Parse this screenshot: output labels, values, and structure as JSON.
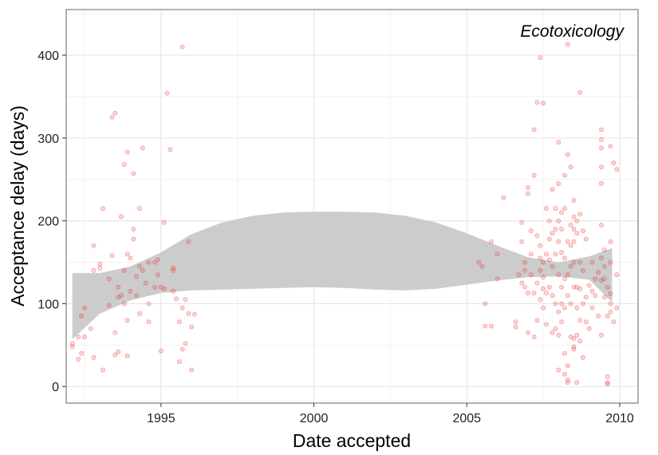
{
  "chart_data": {
    "type": "scatter",
    "annotation": "Ecotoxicology",
    "xlabel": "Date accepted",
    "ylabel": "Acceptance delay (days)",
    "xlim": [
      1991.9,
      2010.6
    ],
    "ylim": [
      -20,
      455
    ],
    "x_ticks": [
      1995,
      2000,
      2005,
      2010
    ],
    "x_tick_labels": [
      "1995",
      "2000",
      "2005",
      "2010"
    ],
    "y_ticks": [
      0,
      100,
      200,
      300,
      400
    ],
    "y_tick_labels": [
      "0",
      "100",
      "200",
      "300",
      "400"
    ],
    "grid": true,
    "point_color": "#e8191c",
    "band_color": "#cccccc",
    "confidence_band": {
      "x": [
        1992.1,
        1993.0,
        1994.0,
        1995.0,
        1996.0,
        1997.0,
        1998.0,
        1999.0,
        2000.0,
        2001.0,
        2002.0,
        2003.0,
        2004.0,
        2005.0,
        2006.0,
        2007.0,
        2008.0,
        2009.0,
        2009.75
      ],
      "upper": [
        137,
        137,
        145,
        162,
        184,
        198,
        206,
        210,
        211,
        211,
        210,
        206,
        198,
        185,
        170,
        156,
        150,
        157,
        167
      ],
      "lower": [
        57,
        88,
        104,
        113,
        116,
        117,
        118,
        119,
        120,
        119,
        117,
        116,
        118,
        123,
        128,
        132,
        133,
        129,
        102
      ]
    },
    "points": [
      [
        1992.1,
        52
      ],
      [
        1992.1,
        48
      ],
      [
        1992.3,
        33
      ],
      [
        1992.3,
        60
      ],
      [
        1992.4,
        40
      ],
      [
        1992.4,
        85
      ],
      [
        1992.5,
        60
      ],
      [
        1992.5,
        95
      ],
      [
        1992.7,
        70
      ],
      [
        1992.8,
        170
      ],
      [
        1992.8,
        140
      ],
      [
        1992.8,
        35
      ],
      [
        1993.0,
        143
      ],
      [
        1993.0,
        148
      ],
      [
        1993.1,
        20
      ],
      [
        1993.1,
        215
      ],
      [
        1993.3,
        130
      ],
      [
        1993.3,
        98
      ],
      [
        1993.4,
        325
      ],
      [
        1993.5,
        330
      ],
      [
        1993.4,
        158
      ],
      [
        1993.5,
        38
      ],
      [
        1993.5,
        65
      ],
      [
        1993.6,
        120
      ],
      [
        1993.6,
        108
      ],
      [
        1993.6,
        42
      ],
      [
        1993.7,
        205
      ],
      [
        1993.7,
        110
      ],
      [
        1993.8,
        268
      ],
      [
        1993.8,
        100
      ],
      [
        1993.8,
        140
      ],
      [
        1993.9,
        283
      ],
      [
        1993.9,
        160
      ],
      [
        1993.9,
        80
      ],
      [
        1993.9,
        37
      ],
      [
        1994.0,
        155
      ],
      [
        1994.0,
        115
      ],
      [
        1994.1,
        257
      ],
      [
        1994.1,
        190
      ],
      [
        1994.1,
        178
      ],
      [
        1994.2,
        133
      ],
      [
        1994.2,
        110
      ],
      [
        1994.3,
        215
      ],
      [
        1994.3,
        145
      ],
      [
        1994.3,
        88
      ],
      [
        1994.4,
        288
      ],
      [
        1994.4,
        140
      ],
      [
        1994.5,
        125
      ],
      [
        1994.6,
        150
      ],
      [
        1994.6,
        100
      ],
      [
        1994.6,
        78
      ],
      [
        1994.8,
        150
      ],
      [
        1994.8,
        120
      ],
      [
        1994.9,
        135
      ],
      [
        1994.9,
        153
      ],
      [
        1995.0,
        120
      ],
      [
        1995.0,
        43
      ],
      [
        1995.1,
        118
      ],
      [
        1995.1,
        198
      ],
      [
        1995.2,
        354
      ],
      [
        1995.3,
        286
      ],
      [
        1995.4,
        143
      ],
      [
        1995.4,
        140
      ],
      [
        1995.4,
        115
      ],
      [
        1995.5,
        106
      ],
      [
        1995.6,
        30
      ],
      [
        1995.6,
        78
      ],
      [
        1995.7,
        410
      ],
      [
        1995.7,
        45
      ],
      [
        1995.7,
        95
      ],
      [
        1995.8,
        52
      ],
      [
        1995.8,
        105
      ],
      [
        1995.9,
        175
      ],
      [
        1995.9,
        88
      ],
      [
        1996.0,
        72
      ],
      [
        1996.0,
        20
      ],
      [
        1996.1,
        87
      ],
      [
        2005.4,
        150
      ],
      [
        2005.5,
        145
      ],
      [
        2005.6,
        100
      ],
      [
        2005.6,
        73
      ],
      [
        2005.8,
        175
      ],
      [
        2005.8,
        73
      ],
      [
        2006.0,
        160
      ],
      [
        2006.0,
        130
      ],
      [
        2006.2,
        228
      ],
      [
        2006.6,
        78
      ],
      [
        2006.6,
        72
      ],
      [
        2006.7,
        135
      ],
      [
        2006.8,
        125
      ],
      [
        2006.8,
        198
      ],
      [
        2006.8,
        175
      ],
      [
        2006.9,
        150
      ],
      [
        2006.9,
        140
      ],
      [
        2006.9,
        120
      ],
      [
        2007.0,
        240
      ],
      [
        2007.0,
        233
      ],
      [
        2007.0,
        113
      ],
      [
        2007.0,
        65
      ],
      [
        2007.1,
        188
      ],
      [
        2007.1,
        160
      ],
      [
        2007.1,
        135
      ],
      [
        2007.2,
        310
      ],
      [
        2007.2,
        255
      ],
      [
        2007.2,
        113
      ],
      [
        2007.2,
        60
      ],
      [
        2007.3,
        343
      ],
      [
        2007.3,
        182
      ],
      [
        2007.3,
        125
      ],
      [
        2007.3,
        80
      ],
      [
        2007.4,
        397
      ],
      [
        2007.4,
        170
      ],
      [
        2007.4,
        155
      ],
      [
        2007.4,
        140
      ],
      [
        2007.4,
        105
      ],
      [
        2007.5,
        342
      ],
      [
        2007.5,
        150
      ],
      [
        2007.5,
        132
      ],
      [
        2007.5,
        118
      ],
      [
        2007.5,
        95
      ],
      [
        2007.6,
        215
      ],
      [
        2007.6,
        160
      ],
      [
        2007.6,
        113
      ],
      [
        2007.6,
        75
      ],
      [
        2007.7,
        178
      ],
      [
        2007.7,
        200
      ],
      [
        2007.7,
        153
      ],
      [
        2007.7,
        120
      ],
      [
        2007.8,
        238
      ],
      [
        2007.8,
        185
      ],
      [
        2007.8,
        145
      ],
      [
        2007.8,
        110
      ],
      [
        2007.8,
        65
      ],
      [
        2007.9,
        215
      ],
      [
        2007.9,
        190
      ],
      [
        2007.9,
        160
      ],
      [
        2007.9,
        100
      ],
      [
        2007.9,
        70
      ],
      [
        2008.0,
        295
      ],
      [
        2008.0,
        245
      ],
      [
        2008.0,
        200
      ],
      [
        2008.0,
        175
      ],
      [
        2008.0,
        135
      ],
      [
        2008.0,
        90
      ],
      [
        2008.0,
        62
      ],
      [
        2008.0,
        20
      ],
      [
        2008.1,
        210
      ],
      [
        2008.1,
        190
      ],
      [
        2008.1,
        162
      ],
      [
        2008.1,
        120
      ],
      [
        2008.1,
        100
      ],
      [
        2008.1,
        78
      ],
      [
        2008.2,
        255
      ],
      [
        2008.2,
        215
      ],
      [
        2008.2,
        155
      ],
      [
        2008.2,
        130
      ],
      [
        2008.2,
        95
      ],
      [
        2008.2,
        40
      ],
      [
        2008.2,
        15
      ],
      [
        2008.3,
        413
      ],
      [
        2008.3,
        280
      ],
      [
        2008.3,
        175
      ],
      [
        2008.3,
        135
      ],
      [
        2008.3,
        110
      ],
      [
        2008.3,
        25
      ],
      [
        2008.3,
        8
      ],
      [
        2008.3,
        5
      ],
      [
        2008.4,
        265
      ],
      [
        2008.4,
        195
      ],
      [
        2008.4,
        170
      ],
      [
        2008.4,
        145
      ],
      [
        2008.4,
        100
      ],
      [
        2008.4,
        60
      ],
      [
        2008.5,
        225
      ],
      [
        2008.5,
        205
      ],
      [
        2008.5,
        190
      ],
      [
        2008.5,
        175
      ],
      [
        2008.5,
        150
      ],
      [
        2008.5,
        120
      ],
      [
        2008.5,
        58
      ],
      [
        2008.5,
        48
      ],
      [
        2008.5,
        45
      ],
      [
        2008.6,
        200
      ],
      [
        2008.6,
        185
      ],
      [
        2008.6,
        120
      ],
      [
        2008.6,
        95
      ],
      [
        2008.6,
        62
      ],
      [
        2008.6,
        5
      ],
      [
        2008.7,
        355
      ],
      [
        2008.7,
        208
      ],
      [
        2008.7,
        150
      ],
      [
        2008.7,
        118
      ],
      [
        2008.7,
        80
      ],
      [
        2008.7,
        55
      ],
      [
        2008.8,
        188
      ],
      [
        2008.8,
        140
      ],
      [
        2008.8,
        100
      ],
      [
        2008.8,
        35
      ],
      [
        2008.9,
        178
      ],
      [
        2008.9,
        108
      ],
      [
        2008.9,
        78
      ],
      [
        2009.0,
        122
      ],
      [
        2009.0,
        70
      ],
      [
        2009.1,
        150
      ],
      [
        2009.1,
        115
      ],
      [
        2009.1,
        95
      ],
      [
        2009.2,
        130
      ],
      [
        2009.2,
        110
      ],
      [
        2009.3,
        138
      ],
      [
        2009.3,
        85
      ],
      [
        2009.4,
        310
      ],
      [
        2009.4,
        298
      ],
      [
        2009.4,
        288
      ],
      [
        2009.4,
        265
      ],
      [
        2009.4,
        245
      ],
      [
        2009.4,
        195
      ],
      [
        2009.4,
        155
      ],
      [
        2009.4,
        128
      ],
      [
        2009.4,
        62
      ],
      [
        2009.5,
        165
      ],
      [
        2009.5,
        145
      ],
      [
        2009.5,
        130
      ],
      [
        2009.5,
        108
      ],
      [
        2009.6,
        120
      ],
      [
        2009.6,
        85
      ],
      [
        2009.6,
        12
      ],
      [
        2009.6,
        5
      ],
      [
        2009.6,
        3
      ],
      [
        2009.7,
        290
      ],
      [
        2009.7,
        175
      ],
      [
        2009.7,
        150
      ],
      [
        2009.7,
        112
      ],
      [
        2009.7,
        100
      ],
      [
        2009.7,
        90
      ],
      [
        2009.8,
        270
      ],
      [
        2009.8,
        78
      ],
      [
        2009.9,
        262
      ],
      [
        2009.9,
        135
      ],
      [
        2009.9,
        95
      ]
    ]
  }
}
